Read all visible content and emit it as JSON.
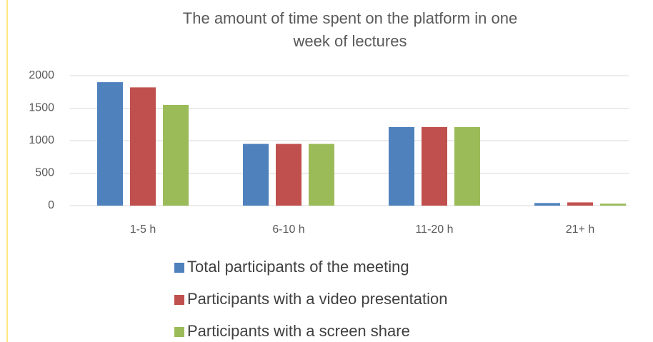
{
  "chart_data": {
    "type": "bar",
    "title": "The amount of time spent on the platform in one week of lectures",
    "categories": [
      "1-5 h",
      "6-10 h",
      "11-20 h",
      "21+ h"
    ],
    "series": [
      {
        "name": "Total participants of the meeting",
        "color": "#4f81bd",
        "values": [
          1900,
          950,
          1210,
          40
        ]
      },
      {
        "name": "Participants with a video presentation",
        "color": "#c0504d",
        "values": [
          1820,
          950,
          1210,
          50
        ]
      },
      {
        "name": "Participants with a screen share",
        "color": "#9bbb59",
        "values": [
          1550,
          950,
          1210,
          30
        ]
      }
    ],
    "ylim": [
      0,
      2000
    ],
    "yticks": [
      0,
      500,
      1000,
      1500,
      2000
    ],
    "grid": true
  }
}
